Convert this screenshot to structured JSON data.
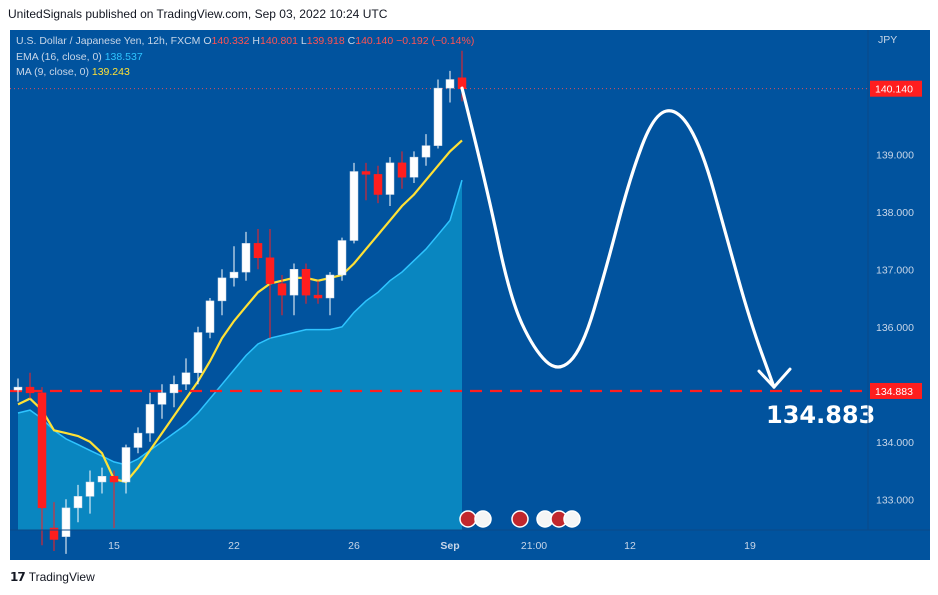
{
  "header": {
    "publisher": "UnitedSignals published on TradingView.com, Sep 03, 2022 10:24 UTC"
  },
  "legend": {
    "symbol": "U.S. Dollar / Japanese Yen, 12h, FXCM",
    "o_label": "O",
    "o_val": "140.332",
    "h_label": "H",
    "h_val": "140.801",
    "l_label": "L",
    "l_val": "139.918",
    "c_label": "C",
    "c_val": "140.140",
    "chg": "−0.192 (−0.14%)",
    "ema_label": "EMA (16, close, 0)",
    "ema_val": "138.537",
    "ma_label": "MA (9, close, 0)",
    "ma_val": "139.243"
  },
  "footer": {
    "brand": "TradingView"
  },
  "chart_data": {
    "type": "candlestick",
    "currency": "JPY",
    "y_ticks": [
      "139.000",
      "138.000",
      "137.000",
      "136.000",
      "134.000",
      "133.000"
    ],
    "ylim": [
      132.1,
      141.0
    ],
    "x_ticks": [
      {
        "label": "15",
        "i": 8
      },
      {
        "label": "22",
        "i": 18
      },
      {
        "label": "26",
        "i": 28
      },
      {
        "label": "Sep",
        "i": 36
      },
      {
        "label": "21:00",
        "i": 43
      },
      {
        "label": "12",
        "i": 51
      },
      {
        "label": "19",
        "i": 61
      }
    ],
    "candles": [
      {
        "o": 134.9,
        "h": 135.1,
        "l": 134.7,
        "c": 134.95
      },
      {
        "o": 134.95,
        "h": 135.2,
        "l": 134.75,
        "c": 134.85
      },
      {
        "o": 134.85,
        "h": 134.95,
        "l": 132.2,
        "c": 132.85
      },
      {
        "o": 132.5,
        "h": 132.95,
        "l": 132.1,
        "c": 132.3
      },
      {
        "o": 132.35,
        "h": 133.0,
        "l": 132.05,
        "c": 132.85
      },
      {
        "o": 132.85,
        "h": 133.25,
        "l": 132.6,
        "c": 133.05
      },
      {
        "o": 133.05,
        "h": 133.5,
        "l": 132.75,
        "c": 133.3
      },
      {
        "o": 133.3,
        "h": 133.55,
        "l": 133.1,
        "c": 133.4
      },
      {
        "o": 133.4,
        "h": 133.5,
        "l": 132.5,
        "c": 133.3
      },
      {
        "o": 133.3,
        "h": 133.95,
        "l": 133.1,
        "c": 133.9
      },
      {
        "o": 133.9,
        "h": 134.25,
        "l": 133.8,
        "c": 134.15
      },
      {
        "o": 134.15,
        "h": 134.85,
        "l": 134.0,
        "c": 134.65
      },
      {
        "o": 134.65,
        "h": 135.0,
        "l": 134.4,
        "c": 134.85
      },
      {
        "o": 134.85,
        "h": 135.15,
        "l": 134.6,
        "c": 135.0
      },
      {
        "o": 135.0,
        "h": 135.45,
        "l": 134.9,
        "c": 135.2
      },
      {
        "o": 135.2,
        "h": 136.0,
        "l": 135.0,
        "c": 135.9
      },
      {
        "o": 135.9,
        "h": 136.5,
        "l": 135.8,
        "c": 136.45
      },
      {
        "o": 136.45,
        "h": 137.0,
        "l": 136.2,
        "c": 136.85
      },
      {
        "o": 136.85,
        "h": 137.4,
        "l": 136.7,
        "c": 136.95
      },
      {
        "o": 136.95,
        "h": 137.65,
        "l": 136.8,
        "c": 137.45
      },
      {
        "o": 137.45,
        "h": 137.7,
        "l": 137.0,
        "c": 137.2
      },
      {
        "o": 137.2,
        "h": 137.7,
        "l": 135.8,
        "c": 136.75
      },
      {
        "o": 136.75,
        "h": 136.9,
        "l": 136.2,
        "c": 136.55
      },
      {
        "o": 136.55,
        "h": 137.1,
        "l": 136.2,
        "c": 137.0
      },
      {
        "o": 137.0,
        "h": 137.1,
        "l": 136.4,
        "c": 136.55
      },
      {
        "o": 136.55,
        "h": 136.8,
        "l": 136.4,
        "c": 136.5
      },
      {
        "o": 136.5,
        "h": 136.95,
        "l": 136.2,
        "c": 136.9
      },
      {
        "o": 136.9,
        "h": 137.55,
        "l": 136.8,
        "c": 137.5
      },
      {
        "o": 137.5,
        "h": 138.85,
        "l": 137.45,
        "c": 138.7
      },
      {
        "o": 138.7,
        "h": 138.85,
        "l": 138.2,
        "c": 138.65
      },
      {
        "o": 138.65,
        "h": 138.8,
        "l": 138.15,
        "c": 138.3
      },
      {
        "o": 138.3,
        "h": 138.95,
        "l": 138.1,
        "c": 138.85
      },
      {
        "o": 138.85,
        "h": 139.05,
        "l": 138.4,
        "c": 138.6
      },
      {
        "o": 138.6,
        "h": 139.05,
        "l": 138.5,
        "c": 138.95
      },
      {
        "o": 138.95,
        "h": 139.35,
        "l": 138.8,
        "c": 139.15
      },
      {
        "o": 139.15,
        "h": 140.3,
        "l": 139.1,
        "c": 140.15
      },
      {
        "o": 140.15,
        "h": 140.45,
        "l": 139.9,
        "c": 140.3
      },
      {
        "o": 140.33,
        "h": 140.8,
        "l": 139.92,
        "c": 140.14
      }
    ],
    "ema": [
      134.5,
      134.55,
      134.4,
      134.2,
      134.05,
      133.95,
      133.85,
      133.75,
      133.65,
      133.6,
      133.7,
      133.85,
      134.0,
      134.15,
      134.3,
      134.5,
      134.75,
      135.0,
      135.25,
      135.5,
      135.7,
      135.8,
      135.85,
      135.9,
      135.95,
      135.95,
      135.95,
      136.0,
      136.25,
      136.45,
      136.6,
      136.8,
      136.95,
      137.15,
      137.35,
      137.6,
      137.85,
      138.55
    ],
    "ma": [
      134.65,
      134.75,
      134.55,
      134.2,
      134.15,
      134.1,
      134.0,
      133.8,
      133.35,
      133.3,
      133.55,
      133.85,
      134.15,
      134.45,
      134.75,
      135.05,
      135.4,
      135.8,
      136.1,
      136.35,
      136.6,
      136.75,
      136.8,
      136.85,
      136.85,
      136.8,
      136.85,
      136.9,
      137.1,
      137.35,
      137.6,
      137.85,
      138.1,
      138.3,
      138.55,
      138.8,
      139.05,
      139.24
    ],
    "current_price": "140.140",
    "target_price": "134.883",
    "target_label": "134.883",
    "projection": [
      {
        "i": 37,
        "y": 140.15
      },
      {
        "i": 39,
        "y": 138.5
      },
      {
        "i": 41,
        "y": 136.5
      },
      {
        "i": 43,
        "y": 135.6
      },
      {
        "i": 45,
        "y": 135.2
      },
      {
        "i": 47,
        "y": 135.6
      },
      {
        "i": 49,
        "y": 137.0
      },
      {
        "i": 51,
        "y": 138.6
      },
      {
        "i": 53,
        "y": 139.7
      },
      {
        "i": 55,
        "y": 139.8
      },
      {
        "i": 57,
        "y": 139.1
      },
      {
        "i": 59,
        "y": 137.6
      },
      {
        "i": 61,
        "y": 136.1
      },
      {
        "i": 63,
        "y": 134.95
      }
    ],
    "colors": {
      "up": "#ffffff",
      "down": "#ff1e1e",
      "ema": "#2ec4ff",
      "ma": "#ffe135",
      "area": "#0a8fc6",
      "projection": "#ffffff",
      "level": "#ff1e1e",
      "bg": "#01539e"
    }
  }
}
